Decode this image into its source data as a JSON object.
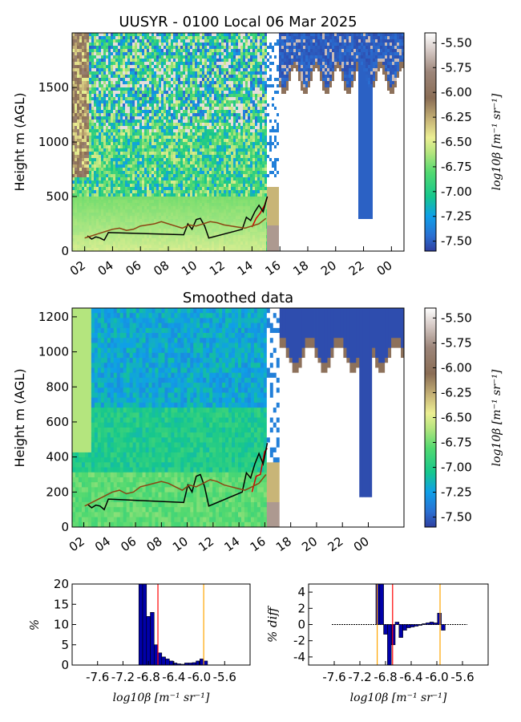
{
  "panels": {
    "raw": {
      "title": "UUSYR - 0100 Local 06 Mar 2025",
      "ylabel": "Height m (AGL)",
      "ylim": [
        0,
        2000
      ],
      "yticks": [
        "0",
        "500",
        "1000",
        "1500"
      ],
      "xticks": [
        "02",
        "04",
        "06",
        "08",
        "10",
        "12",
        "14",
        "16",
        "18",
        "20",
        "22",
        "00"
      ],
      "colorbar": {
        "label": "log10β [m⁻¹ sr⁻¹]",
        "ticks": [
          "-5.50",
          "-5.75",
          "-6.00",
          "-6.25",
          "-6.50",
          "-6.75",
          "-7.00",
          "-7.25",
          "-7.50"
        ]
      }
    },
    "smoothed": {
      "title": "Smoothed data",
      "ylabel": "Height m (AGL)",
      "ylim": [
        0,
        1250
      ],
      "yticks": [
        "0",
        "200",
        "400",
        "600",
        "800",
        "1000",
        "1200"
      ],
      "xticks": [
        "02",
        "04",
        "06",
        "08",
        "10",
        "12",
        "14",
        "16",
        "18",
        "20",
        "22",
        "00"
      ],
      "colorbar": {
        "label": "log10β [m⁻¹ sr⁻¹]",
        "ticks": [
          "-5.50",
          "-5.75",
          "-6.00",
          "-6.25",
          "-6.50",
          "-6.75",
          "-7.00",
          "-7.25",
          "-7.50"
        ]
      }
    },
    "hist": {
      "ylabel": "%",
      "xlabel": "log10β [m⁻¹ sr⁻¹]",
      "yticks": [
        "0",
        "5",
        "10",
        "15",
        "20"
      ],
      "xticks": [
        "-7.6",
        "-7.2",
        "-6.8",
        "-6.4",
        "-6.0",
        "-5.6"
      ]
    },
    "diff": {
      "ylabel": "% diff",
      "xlabel": "log10β [m⁻¹ sr⁻¹]",
      "yticks": [
        "4",
        "2",
        "0",
        "-2",
        "-4"
      ],
      "xticks": [
        "-7.6",
        "-7.2",
        "-6.8",
        "-6.4",
        "-6.0",
        "-5.6"
      ]
    }
  },
  "chart_data": [
    {
      "type": "heatmap",
      "title": "UUSYR - 0100 Local 06 Mar 2025",
      "xlabel": "",
      "ylabel": "Height m (AGL)",
      "x_ticks": [
        "02",
        "04",
        "06",
        "08",
        "10",
        "12",
        "14",
        "16",
        "18",
        "20",
        "22",
        "00"
      ],
      "ylim": [
        0,
        2000
      ],
      "zlim": [
        -7.6,
        -5.4
      ],
      "colorbar_label": "log10β [m⁻¹ sr⁻¹]",
      "colorbar_ticks": [
        -5.5,
        -5.75,
        -6.0,
        -6.25,
        -6.5,
        -6.75,
        -7.0,
        -7.25,
        -7.5
      ],
      "series": [
        {
          "color": "#d40000",
          "x": [
            14.0,
            14.3,
            14.6,
            14.9,
            15.1
          ],
          "y": [
            220,
            300,
            350,
            420,
            500
          ]
        },
        {
          "color": "#000000",
          "x": [
            2.2,
            2.5,
            2.8,
            3.1,
            3.4,
            3.7,
            9.1,
            9.4,
            9.7,
            10.0,
            10.3,
            10.6,
            10.9,
            13.3,
            13.6,
            13.9,
            14.2,
            14.5,
            14.8,
            15.1
          ],
          "y": [
            140,
            110,
            130,
            120,
            100,
            170,
            150,
            250,
            200,
            290,
            300,
            230,
            120,
            200,
            310,
            280,
            360,
            420,
            360,
            500
          ]
        },
        {
          "color": "#8b4513",
          "x": [
            2.0,
            2.5,
            3.0,
            3.5,
            4.0,
            4.5,
            5.0,
            5.5,
            6.0,
            6.5,
            7.0,
            7.5,
            8.0,
            8.5,
            9.0,
            9.5,
            10.0,
            10.5,
            11.0,
            11.5,
            12.0,
            12.5,
            13.0,
            13.5,
            14.0,
            14.5,
            15.0
          ],
          "y": [
            120,
            140,
            160,
            180,
            200,
            210,
            190,
            200,
            230,
            240,
            250,
            270,
            250,
            230,
            210,
            240,
            230,
            250,
            270,
            260,
            240,
            230,
            220,
            210,
            230,
            250,
            300
          ]
        }
      ]
    },
    {
      "type": "heatmap",
      "title": "Smoothed data",
      "xlabel": "",
      "ylabel": "Height m (AGL)",
      "x_ticks": [
        "02",
        "04",
        "06",
        "08",
        "10",
        "12",
        "14",
        "16",
        "18",
        "20",
        "22",
        "00"
      ],
      "ylim": [
        0,
        1250
      ],
      "zlim": [
        -7.6,
        -5.4
      ],
      "colorbar_label": "log10β [m⁻¹ sr⁻¹]",
      "colorbar_ticks": [
        -5.5,
        -5.75,
        -6.0,
        -6.25,
        -6.5,
        -6.75,
        -7.0,
        -7.25,
        -7.5
      ],
      "series": [
        {
          "color": "#d40000",
          "x": [
            14.0,
            14.3,
            14.6,
            14.9,
            15.1
          ],
          "y": [
            200,
            290,
            300,
            430,
            450
          ]
        },
        {
          "color": "#000000",
          "x": [
            2.2,
            2.5,
            2.8,
            3.1,
            3.4,
            3.7,
            9.1,
            9.4,
            9.7,
            10.0,
            10.3,
            10.6,
            10.9,
            13.3,
            13.6,
            13.9,
            14.2,
            14.5,
            14.8,
            15.1
          ],
          "y": [
            130,
            110,
            125,
            120,
            100,
            160,
            140,
            240,
            200,
            290,
            300,
            230,
            120,
            200,
            310,
            280,
            360,
            420,
            360,
            480
          ]
        },
        {
          "color": "#8b4513",
          "x": [
            2.0,
            2.5,
            3.0,
            3.5,
            4.0,
            4.5,
            5.0,
            5.5,
            6.0,
            6.5,
            7.0,
            7.5,
            8.0,
            8.5,
            9.0,
            9.5,
            10.0,
            10.5,
            11.0,
            11.5,
            12.0,
            12.5,
            13.0,
            13.5,
            14.0,
            14.5,
            15.0
          ],
          "y": [
            120,
            140,
            160,
            180,
            200,
            210,
            190,
            200,
            230,
            240,
            250,
            260,
            250,
            230,
            210,
            240,
            230,
            250,
            270,
            260,
            240,
            230,
            220,
            210,
            230,
            250,
            300
          ]
        }
      ]
    },
    {
      "type": "bar",
      "title": "",
      "xlabel": "log10β [m⁻¹ sr⁻¹]",
      "ylabel": "%",
      "xlim": [
        -8.0,
        -5.2
      ],
      "ylim": [
        0,
        20
      ],
      "x": [
        -6.92,
        -6.86,
        -6.8,
        -6.74,
        -6.68,
        -6.62,
        -6.56,
        -6.5,
        -6.44,
        -6.38,
        -6.32,
        -6.26,
        -6.2,
        -6.14,
        -6.08,
        -6.02,
        -5.96,
        -5.9
      ],
      "values": [
        20,
        20,
        12,
        13,
        5,
        3,
        2,
        1.5,
        1,
        0.5,
        0.3,
        0.2,
        0.5,
        0.5,
        0.6,
        1,
        1.5,
        1
      ],
      "vlines": [
        {
          "x": -6.65,
          "color": "#ff0000"
        },
        {
          "x": -5.93,
          "color": "#ffa500"
        }
      ]
    },
    {
      "type": "bar",
      "title": "",
      "xlabel": "log10β [m⁻¹ sr⁻¹]",
      "ylabel": "% diff",
      "xlim": [
        -8.0,
        -5.2
      ],
      "ylim": [
        -5,
        5
      ],
      "x": [
        -6.92,
        -6.86,
        -6.8,
        -6.74,
        -6.68,
        -6.62,
        -6.56,
        -6.5,
        -6.44,
        -6.38,
        -6.32,
        -6.26,
        -6.2,
        -6.14,
        -6.08,
        -6.02,
        -5.96,
        -5.9
      ],
      "values": [
        5,
        5,
        -1.2,
        -5,
        -2.5,
        0.3,
        -1.6,
        -0.7,
        -0.4,
        -0.3,
        -0.2,
        -0.1,
        0.1,
        0.2,
        0.3,
        0.2,
        1.4,
        -0.7
      ],
      "vlines": [
        {
          "x": -6.93,
          "color": "#ffa500"
        },
        {
          "x": -6.69,
          "color": "#ff0000"
        },
        {
          "x": -5.95,
          "color": "#ffa500"
        }
      ]
    }
  ]
}
